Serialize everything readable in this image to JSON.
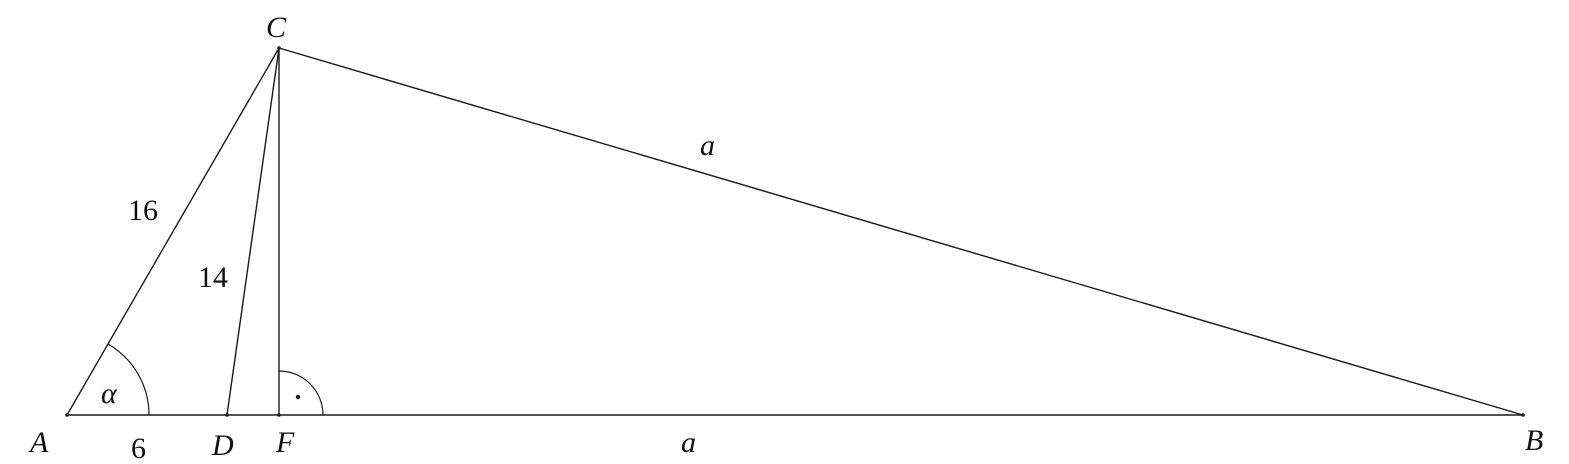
{
  "points": {
    "A": "A",
    "B": "B",
    "C": "C",
    "D": "D",
    "F": "F"
  },
  "lengths": {
    "AC": "16",
    "CD": "14",
    "AD": "6",
    "CB": "a",
    "FB": "a"
  },
  "angles": {
    "alpha": "α",
    "right_mark": "·"
  },
  "colors": {
    "line": "#1a1a1a",
    "text": "#111111",
    "background": "#ffffff"
  }
}
